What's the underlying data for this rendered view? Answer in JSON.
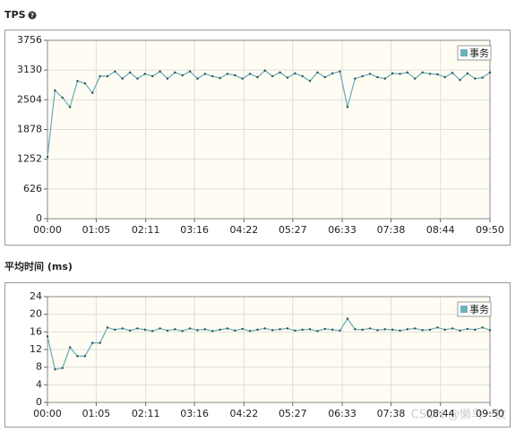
{
  "chart_data": [
    {
      "type": "line",
      "title": "TPS",
      "x": [
        0,
        10,
        20,
        30,
        40,
        50,
        60,
        70,
        80,
        90,
        100,
        110,
        120,
        130,
        140,
        150,
        160,
        170,
        180,
        190,
        200,
        210,
        220,
        230,
        240,
        250,
        260,
        270,
        280,
        290,
        300,
        310,
        320,
        330,
        340,
        350,
        360,
        370,
        380,
        390,
        400,
        410,
        420,
        430,
        440,
        450,
        460,
        470,
        480,
        490,
        500,
        510,
        520,
        530,
        540,
        550,
        560,
        570,
        580,
        590
      ],
      "series": [
        {
          "name": "事务",
          "color": "#6fb0bd",
          "values": [
            1300,
            2700,
            2550,
            2350,
            2900,
            2850,
            2650,
            3000,
            3000,
            3100,
            2950,
            3080,
            2950,
            3050,
            3000,
            3100,
            2950,
            3080,
            3020,
            3100,
            2950,
            3050,
            3000,
            2960,
            3050,
            3020,
            2950,
            3050,
            2980,
            3120,
            3000,
            3080,
            2970,
            3060,
            3000,
            2900,
            3080,
            2980,
            3060,
            3100,
            2350,
            2950,
            3000,
            3050,
            2980,
            2950,
            3060,
            3050,
            3080,
            2950,
            3080,
            3050,
            3040,
            2980,
            3070,
            2920,
            3060,
            2950,
            2970,
            3080
          ]
        }
      ],
      "xlim": [
        0,
        590
      ],
      "xticks": [
        {
          "value": 0,
          "label": "00:00"
        },
        {
          "value": 65,
          "label": "01:05"
        },
        {
          "value": 131,
          "label": "02:11"
        },
        {
          "value": 196,
          "label": "03:16"
        },
        {
          "value": 262,
          "label": "04:22"
        },
        {
          "value": 327,
          "label": "05:27"
        },
        {
          "value": 393,
          "label": "06:33"
        },
        {
          "value": 458,
          "label": "07:38"
        },
        {
          "value": 524,
          "label": "08:44"
        },
        {
          "value": 590,
          "label": "09:50"
        }
      ],
      "ylim": [
        0,
        3756
      ],
      "yticks": [
        0,
        626,
        1252,
        1878,
        2504,
        3130,
        3756
      ],
      "grid": true,
      "legend": "top-right"
    },
    {
      "type": "line",
      "title": "平均时间 (ms)",
      "x": [
        0,
        10,
        20,
        30,
        40,
        50,
        60,
        70,
        80,
        90,
        100,
        110,
        120,
        130,
        140,
        150,
        160,
        170,
        180,
        190,
        200,
        210,
        220,
        230,
        240,
        250,
        260,
        270,
        280,
        290,
        300,
        310,
        320,
        330,
        340,
        350,
        360,
        370,
        380,
        390,
        400,
        410,
        420,
        430,
        440,
        450,
        460,
        470,
        480,
        490,
        500,
        510,
        520,
        530,
        540,
        550,
        560,
        570,
        580,
        590
      ],
      "series": [
        {
          "name": "事务",
          "color": "#6fb0bd",
          "values": [
            15,
            7.5,
            7.8,
            12.5,
            10.5,
            10.5,
            13.5,
            13.5,
            17,
            16.5,
            16.8,
            16.3,
            16.8,
            16.5,
            16.2,
            16.8,
            16.3,
            16.6,
            16.2,
            16.8,
            16.4,
            16.6,
            16.2,
            16.5,
            16.8,
            16.3,
            16.7,
            16.2,
            16.5,
            16.8,
            16.4,
            16.6,
            16.8,
            16.3,
            16.5,
            16.6,
            16.2,
            16.7,
            16.5,
            16.3,
            19,
            16.6,
            16.5,
            16.8,
            16.4,
            16.6,
            16.5,
            16.3,
            16.6,
            16.8,
            16.4,
            16.5,
            17,
            16.5,
            16.8,
            16.3,
            16.7,
            16.5,
            17,
            16.4
          ]
        }
      ],
      "xlim": [
        0,
        590
      ],
      "xticks": [
        {
          "value": 0,
          "label": "00:00"
        },
        {
          "value": 65,
          "label": "01:05"
        },
        {
          "value": 131,
          "label": "02:11"
        },
        {
          "value": 196,
          "label": "03:16"
        },
        {
          "value": 262,
          "label": "04:22"
        },
        {
          "value": 327,
          "label": "05:27"
        },
        {
          "value": 393,
          "label": "06:33"
        },
        {
          "value": 458,
          "label": "07:38"
        },
        {
          "value": 524,
          "label": "08:44"
        },
        {
          "value": 590,
          "label": "09:50"
        }
      ],
      "ylim": [
        0,
        24
      ],
      "yticks": [
        0,
        4,
        8,
        12,
        16,
        20,
        24
      ],
      "grid": true,
      "legend": "top-right"
    }
  ],
  "watermark": "CSDN @懒鸟一枚"
}
